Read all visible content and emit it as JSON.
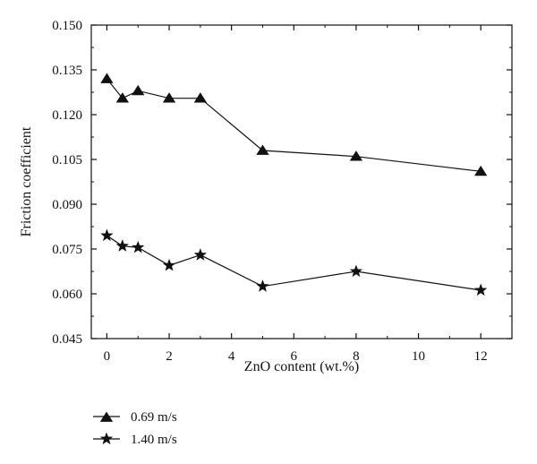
{
  "chart_data": {
    "type": "line",
    "title": "",
    "xlabel": "ZnO content (wt.%)",
    "ylabel": "Friction coefficient",
    "xlim": [
      -0.5,
      13
    ],
    "ylim": [
      0.045,
      0.15
    ],
    "xticks": [
      0,
      2,
      4,
      6,
      8,
      10,
      12
    ],
    "yticks": [
      0.045,
      0.06,
      0.075,
      0.09,
      0.105,
      0.12,
      0.135,
      0.15
    ],
    "xtick_labels": [
      "0",
      "2",
      "4",
      "6",
      "8",
      "10",
      "12"
    ],
    "ytick_labels": [
      "0.045",
      "0.060",
      "0.075",
      "0.090",
      "0.105",
      "0.120",
      "0.135",
      "0.150"
    ],
    "grid": false,
    "legend_position": "bottom-left, below plot",
    "series": [
      {
        "name": "0.69 m/s",
        "marker": "triangle",
        "x": [
          0,
          0.5,
          1,
          2,
          3,
          5,
          8,
          12
        ],
        "y": [
          0.132,
          0.1255,
          0.128,
          0.1255,
          0.1255,
          0.108,
          0.106,
          0.101
        ]
      },
      {
        "name": "1.40 m/s",
        "marker": "star",
        "x": [
          0,
          0.5,
          1,
          2,
          3,
          5,
          8,
          12
        ],
        "y": [
          0.0795,
          0.076,
          0.0755,
          0.0695,
          0.073,
          0.0625,
          0.0675,
          0.0612
        ]
      }
    ]
  }
}
